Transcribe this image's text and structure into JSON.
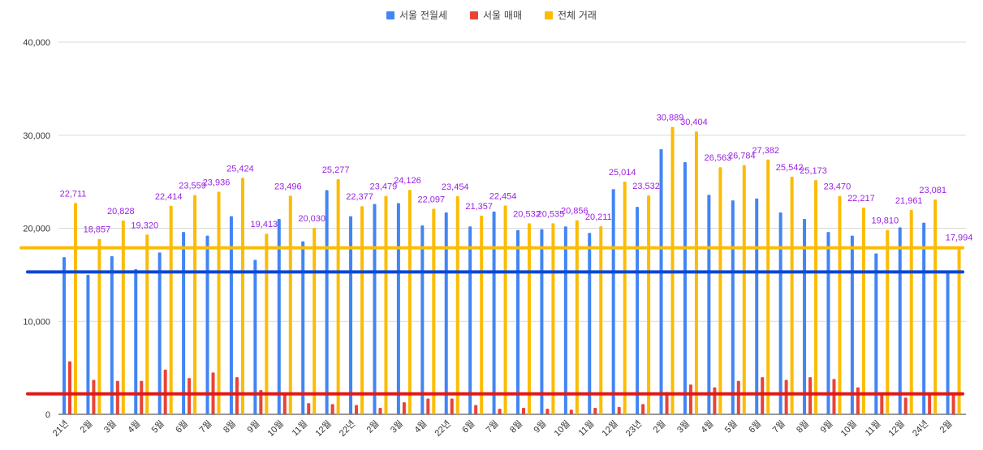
{
  "chart_data": {
    "type": "bar",
    "title": "",
    "xlabel": "",
    "ylabel": "",
    "ylim": [
      0,
      40000
    ],
    "yticks": [
      0,
      10000,
      20000,
      30000,
      40000
    ],
    "ytick_labels": [
      "0",
      "10,000",
      "20,000",
      "30,000",
      "40,000"
    ],
    "categories": [
      "21년",
      "2월",
      "3월",
      "4월",
      "5월",
      "6월",
      "7월",
      "8월",
      "9월",
      "10월",
      "11월",
      "12월",
      "22년",
      "2월",
      "3월",
      "4월",
      "22년",
      "6월",
      "7월",
      "8월",
      "9월",
      "10월",
      "11월",
      "12월",
      "23년",
      "2월",
      "3월",
      "4월",
      "5월",
      "6월",
      "7월",
      "8월",
      "9월",
      "10월",
      "11월",
      "12월",
      "24년",
      "2월"
    ],
    "series": [
      {
        "name": "서울 전월세",
        "color": "#4285f4",
        "values": [
          16900,
          15000,
          17000,
          15600,
          17400,
          19600,
          19200,
          21300,
          16600,
          21000,
          18600,
          24100,
          21300,
          22600,
          22700,
          20300,
          21700,
          20200,
          21800,
          19800,
          19900,
          20200,
          19500,
          24200,
          22300,
          28500,
          27100,
          23600,
          23000,
          23200,
          21700,
          21000,
          19600,
          19200,
          17300,
          20100,
          20600,
          15300
        ]
      },
      {
        "name": "서울 매매",
        "color": "#ea4335",
        "values": [
          5700,
          3700,
          3600,
          3600,
          4800,
          3900,
          4500,
          4000,
          2600,
          2200,
          1200,
          1100,
          1000,
          700,
          1300,
          1700,
          1700,
          1000,
          600,
          700,
          600,
          500,
          700,
          800,
          1100,
          2400,
          3200,
          2900,
          3600,
          4000,
          3700,
          4000,
          3800,
          2900,
          2300,
          1800,
          2300,
          2300
        ]
      },
      {
        "name": "전체 거래",
        "color": "#fbbc04",
        "values": [
          22711,
          18857,
          20828,
          19320,
          22414,
          23559,
          23936,
          25424,
          19413,
          23496,
          20030,
          25277,
          22377,
          23479,
          24126,
          22097,
          23454,
          21357,
          22454,
          20532,
          20535,
          20856,
          20211,
          25014,
          23532,
          30889,
          30404,
          26563,
          26784,
          27382,
          25542,
          25173,
          23470,
          22217,
          19810,
          21961,
          23081,
          17994
        ]
      }
    ],
    "data_labels": [
      "22,711",
      "18,857",
      "20,828",
      "19,320",
      "22,414",
      "23,559",
      "23,936",
      "25,424",
      "19,413",
      "23,496",
      "20,030",
      "25,277",
      "22,377",
      "23,479",
      "24,126",
      "22,097",
      "23,454",
      "21,357",
      "22,454",
      "20,532",
      "20,535",
      "20,856",
      "20,211",
      "25,014",
      "23,532",
      "30,889",
      "30,404",
      "26,563",
      "26,784",
      "27,382",
      "25,542",
      "25,173",
      "23,470",
      "22,217",
      "19,810",
      "21,961",
      "23,081",
      "17,994"
    ],
    "reference_lines": [
      {
        "name": "전체 거래 기준선",
        "value": 17900,
        "color": "#fbbc04"
      },
      {
        "name": "서울 전월세 기준선",
        "value": 15300,
        "color": "#0b47d4"
      },
      {
        "name": "서울 매매 기준선",
        "value": 2200,
        "color": "#e01818"
      }
    ],
    "label_color": "#9b23e3",
    "legend_position": "top-center"
  }
}
